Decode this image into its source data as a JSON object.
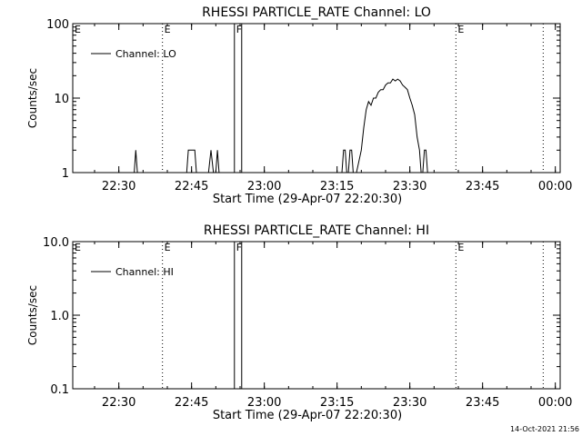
{
  "footer": {
    "timestamp": "14-Oct-2021 21:56"
  },
  "chart_data": [
    {
      "type": "line",
      "title": "RHESSI PARTICLE_RATE Channel: LO",
      "xlabel": "Start Time (29-Apr-07 22:20:30)",
      "ylabel": "Counts/sec",
      "yscale": "log",
      "ylim": [
        1,
        100
      ],
      "xlim": [
        "22:20:30",
        "00:01:00"
      ],
      "x_ticks": [
        "22:30",
        "22:45",
        "23:00",
        "23:15",
        "23:30",
        "23:45",
        "00:00"
      ],
      "y_ticks": [
        "1",
        "10",
        "100"
      ],
      "legend": "top-left",
      "series": [
        {
          "name": "Channel: LO",
          "x": [
            "22:20:30",
            "22:33:10",
            "22:33:30",
            "22:33:50",
            "22:34:10",
            "22:34:30",
            "22:44:00",
            "22:44:20",
            "22:44:40",
            "22:45:40",
            "22:46:00",
            "22:46:10",
            "22:46:30",
            "22:48:30",
            "22:49:00",
            "22:49:30",
            "22:50:00",
            "22:50:20",
            "22:50:40",
            "22:51:00",
            "22:51:30",
            "23:16:00",
            "23:16:20",
            "23:16:40",
            "23:17:00",
            "23:17:20",
            "23:17:40",
            "23:18:00",
            "23:18:20",
            "23:19:00",
            "23:20:00",
            "23:20:30",
            "23:21:00",
            "23:21:30",
            "23:22:00",
            "23:22:30",
            "23:23:00",
            "23:23:30",
            "23:24:00",
            "23:24:30",
            "23:25:00",
            "23:25:30",
            "23:26:00",
            "23:26:30",
            "23:27:00",
            "23:27:30",
            "23:28:00",
            "23:28:30",
            "23:29:00",
            "23:29:30",
            "23:30:00",
            "23:30:30",
            "23:31:00",
            "23:31:30",
            "23:32:00",
            "23:32:20",
            "23:32:40",
            "23:33:00",
            "23:33:20",
            "23:33:40",
            "23:34:00",
            "23:34:20",
            "23:34:40",
            "00:01:00"
          ],
          "y": [
            1,
            1,
            2,
            1,
            1,
            1,
            1,
            2,
            2,
            2,
            1,
            1,
            1,
            1,
            2,
            1,
            1,
            2,
            1,
            1,
            1,
            1,
            2,
            2,
            1,
            1,
            2,
            2,
            1,
            1,
            2,
            4,
            7,
            9,
            8,
            10,
            10,
            12,
            13,
            13,
            15,
            16,
            16,
            18,
            17,
            18,
            17,
            15,
            14,
            13,
            10,
            8,
            6,
            3,
            2,
            1,
            1,
            2,
            2,
            1,
            1,
            1,
            1,
            1
          ]
        }
      ],
      "annotations": [
        {
          "time": "22:39:00",
          "label": "E",
          "style": "dotted"
        },
        {
          "time": "22:53:50",
          "label": "F",
          "style": "solid"
        },
        {
          "time": "22:55:20",
          "label": "",
          "style": "solid"
        },
        {
          "time": "23:39:30",
          "label": "E",
          "style": "dotted"
        },
        {
          "time": "23:57:30",
          "label": "",
          "style": "dotted"
        }
      ],
      "left_edge_label": "E"
    },
    {
      "type": "line",
      "title": "RHESSI PARTICLE_RATE Channel: HI",
      "xlabel": "Start Time (29-Apr-07 22:20:30)",
      "ylabel": "Counts/sec",
      "yscale": "log",
      "ylim": [
        0.1,
        10
      ],
      "xlim": [
        "22:20:30",
        "00:01:00"
      ],
      "x_ticks": [
        "22:30",
        "22:45",
        "23:00",
        "23:15",
        "23:30",
        "23:45",
        "00:00"
      ],
      "y_ticks": [
        "0.1",
        "1.0",
        "10.0"
      ],
      "legend": "top-left",
      "series": [
        {
          "name": "Channel: HI",
          "x": [],
          "y": []
        }
      ],
      "annotations": [
        {
          "time": "22:39:00",
          "label": "E",
          "style": "dotted"
        },
        {
          "time": "22:53:50",
          "label": "F",
          "style": "solid"
        },
        {
          "time": "22:55:20",
          "label": "",
          "style": "solid"
        },
        {
          "time": "23:39:30",
          "label": "E",
          "style": "dotted"
        },
        {
          "time": "23:57:30",
          "label": "",
          "style": "dotted"
        }
      ],
      "left_edge_label": "E"
    }
  ]
}
